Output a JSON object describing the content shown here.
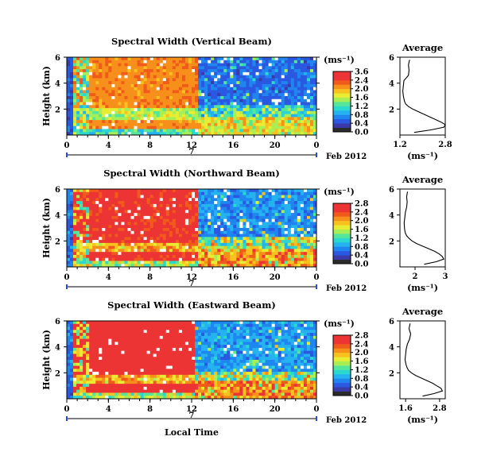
{
  "colors": {
    "scale": [
      "#2b2b2b",
      "#3a3aa8",
      "#2a58e0",
      "#1f86f0",
      "#25b3f0",
      "#2ad8d0",
      "#55e69a",
      "#a8ef55",
      "#e8ec33",
      "#f7c21f",
      "#f7901a",
      "#f05a1a",
      "#ec3434",
      "#ec3434"
    ],
    "missing": "#ffffff",
    "line": "#000000",
    "axis_ticklabels_color": "#000000"
  },
  "panels": [
    {
      "title": "Spectral Width (Vertical Beam)",
      "ylabel": "Height (km)",
      "y_ticks": [
        "2",
        "4",
        "6"
      ],
      "x_ticks": [
        "0",
        "4",
        "8",
        "12",
        "16",
        "20",
        "0"
      ],
      "date_marker": "7",
      "date_label": "Feb 2012",
      "cbar_unit": "(ms⁻¹)",
      "cbar_ticks": [
        "3.6",
        "2.4",
        "2.0",
        "1.6",
        "1.2",
        "0.8",
        "0.4",
        "0.0"
      ],
      "avg_title": "Average",
      "avg_y_ticks": [
        "2",
        "4",
        "6"
      ],
      "avg_x_ticks": [
        "1.2",
        "2.8"
      ],
      "avg_xlabel": "(ms⁻¹)"
    },
    {
      "title": "Spectral Width (Northward Beam)",
      "ylabel": "Height (km)",
      "y_ticks": [
        "2",
        "4",
        "6"
      ],
      "x_ticks": [
        "0",
        "4",
        "8",
        "12",
        "16",
        "20",
        "0"
      ],
      "date_marker": "7",
      "date_label": "Feb 2012",
      "cbar_unit": "(ms⁻¹)",
      "cbar_ticks": [
        "2.8",
        "2.4",
        "2.0",
        "1.6",
        "1.2",
        "0.8",
        "0.4",
        "0.0"
      ],
      "avg_title": "Average",
      "avg_y_ticks": [
        "2",
        "4",
        "6"
      ],
      "avg_x_ticks": [
        "2",
        "3"
      ],
      "avg_xlabel": "(ms⁻¹)"
    },
    {
      "title": "Spectral Width (Eastward Beam)",
      "ylabel": "Height (km)",
      "y_ticks": [
        "2",
        "4",
        "6"
      ],
      "x_ticks": [
        "0",
        "4",
        "8",
        "12",
        "16",
        "20",
        "0"
      ],
      "date_marker": "7",
      "date_label": "Feb 2012",
      "xlabel": "Local Time",
      "cbar_unit": "(ms⁻¹)",
      "cbar_ticks": [
        "2.8",
        "2.4",
        "2.0",
        "1.6",
        "1.2",
        "0.8",
        "0.4",
        "0.0"
      ],
      "avg_title": "Average",
      "avg_y_ticks": [
        "2",
        "4",
        "6"
      ],
      "avg_x_ticks": [
        "1.6",
        "2.8"
      ],
      "avg_xlabel": "(ms⁻¹)"
    }
  ],
  "chart_data": [
    {
      "type": "heatmap",
      "title": "Spectral Width (Vertical Beam)",
      "xlabel": "",
      "ylabel": "Height (km)",
      "x_ticks": [
        "0",
        "4",
        "8",
        "12",
        "16",
        "20",
        "0"
      ],
      "xlim": [
        0,
        24
      ],
      "ylim": [
        0,
        6
      ],
      "colorbar": {
        "label": "(ms⁻¹)",
        "ticks": [
          3.6,
          2.4,
          2.0,
          1.6,
          1.2,
          0.8,
          0.4,
          0.0
        ]
      },
      "pattern": {
        "day_end_hour": 12.5,
        "day_value": 2.8,
        "night_upper_value": 0.4,
        "night_lower_value": 2.6,
        "night_layer_top_km": 2.4,
        "boundary_layer_km": 1.4
      },
      "average_profile": {
        "title": "Average",
        "xlabel": "(ms⁻¹)",
        "x_ticks": [
          1.2,
          2.8
        ],
        "xlim": [
          1.2,
          2.8
        ],
        "ylim": [
          0,
          6
        ],
        "height_km": [
          0.2,
          0.4,
          0.6,
          0.8,
          1.0,
          1.2,
          1.4,
          1.6,
          1.8,
          2.0,
          2.2,
          2.4,
          2.6,
          2.8,
          3.0,
          3.4,
          3.8,
          4.2,
          4.6,
          5.0,
          5.4,
          5.8
        ],
        "width_ms": [
          1.7,
          2.3,
          2.75,
          2.8,
          2.65,
          2.45,
          2.25,
          2.05,
          1.85,
          1.65,
          1.5,
          1.4,
          1.36,
          1.34,
          1.32,
          1.3,
          1.32,
          1.34,
          1.5,
          1.52,
          1.5,
          1.54
        ]
      }
    },
    {
      "type": "heatmap",
      "title": "Spectral Width (Northward Beam)",
      "xlabel": "",
      "ylabel": "Height (km)",
      "x_ticks": [
        "0",
        "4",
        "8",
        "12",
        "16",
        "20",
        "0"
      ],
      "xlim": [
        0,
        24
      ],
      "ylim": [
        0,
        6
      ],
      "colorbar": {
        "label": "(ms⁻¹)",
        "ticks": [
          2.8,
          2.4,
          2.0,
          1.6,
          1.2,
          0.8,
          0.4,
          0.0
        ]
      },
      "pattern": {
        "day_end_hour": 12.5,
        "day_value": 2.6,
        "night_upper_value": 0.45,
        "night_lower_value": 2.4,
        "night_layer_top_km": 2.2,
        "boundary_layer_km": 1.3
      },
      "average_profile": {
        "title": "Average",
        "xlabel": "(ms⁻¹)",
        "x_ticks": [
          2,
          3
        ],
        "xlim": [
          1.5,
          3.0
        ],
        "ylim": [
          0,
          6
        ],
        "height_km": [
          0.2,
          0.4,
          0.6,
          0.8,
          1.0,
          1.2,
          1.4,
          1.6,
          1.8,
          2.0,
          2.2,
          2.4,
          2.6,
          2.8,
          3.0,
          3.4,
          3.8,
          4.2,
          4.6,
          5.0,
          5.4,
          5.8
        ],
        "width_ms": [
          2.3,
          2.7,
          2.95,
          2.9,
          2.8,
          2.65,
          2.45,
          2.25,
          2.05,
          1.9,
          1.8,
          1.72,
          1.68,
          1.66,
          1.65,
          1.64,
          1.66,
          1.68,
          1.72,
          1.74,
          1.72,
          1.75
        ]
      }
    },
    {
      "type": "heatmap",
      "title": "Spectral Width (Eastward Beam)",
      "xlabel": "Local Time",
      "ylabel": "Height (km)",
      "x_ticks": [
        "0",
        "4",
        "8",
        "12",
        "16",
        "20",
        "0"
      ],
      "xlim": [
        0,
        24
      ],
      "ylim": [
        0,
        6
      ],
      "colorbar": {
        "label": "(ms⁻¹)",
        "ticks": [
          2.8,
          2.4,
          2.0,
          1.6,
          1.2,
          0.8,
          0.4,
          0.0
        ]
      },
      "pattern": {
        "day_end_hour": 12.3,
        "day_value": 2.7,
        "night_upper_value": 0.5,
        "night_lower_value": 2.5,
        "night_layer_top_km": 2.1,
        "boundary_layer_km": 1.3
      },
      "average_profile": {
        "title": "Average",
        "xlabel": "(ms⁻¹)",
        "x_ticks": [
          1.6,
          2.8
        ],
        "xlim": [
          1.4,
          3.0
        ],
        "ylim": [
          0,
          6
        ],
        "height_km": [
          0.2,
          0.4,
          0.6,
          0.8,
          1.0,
          1.2,
          1.4,
          1.6,
          1.8,
          2.0,
          2.2,
          2.4,
          2.6,
          2.8,
          3.0,
          3.4,
          3.8,
          4.2,
          4.6,
          5.0,
          5.4,
          5.8
        ],
        "width_ms": [
          2.2,
          2.6,
          2.9,
          2.85,
          2.7,
          2.55,
          2.35,
          2.15,
          1.95,
          1.8,
          1.7,
          1.65,
          1.62,
          1.6,
          1.58,
          1.6,
          1.62,
          1.66,
          1.74,
          1.78,
          1.72,
          1.76
        ]
      }
    }
  ]
}
